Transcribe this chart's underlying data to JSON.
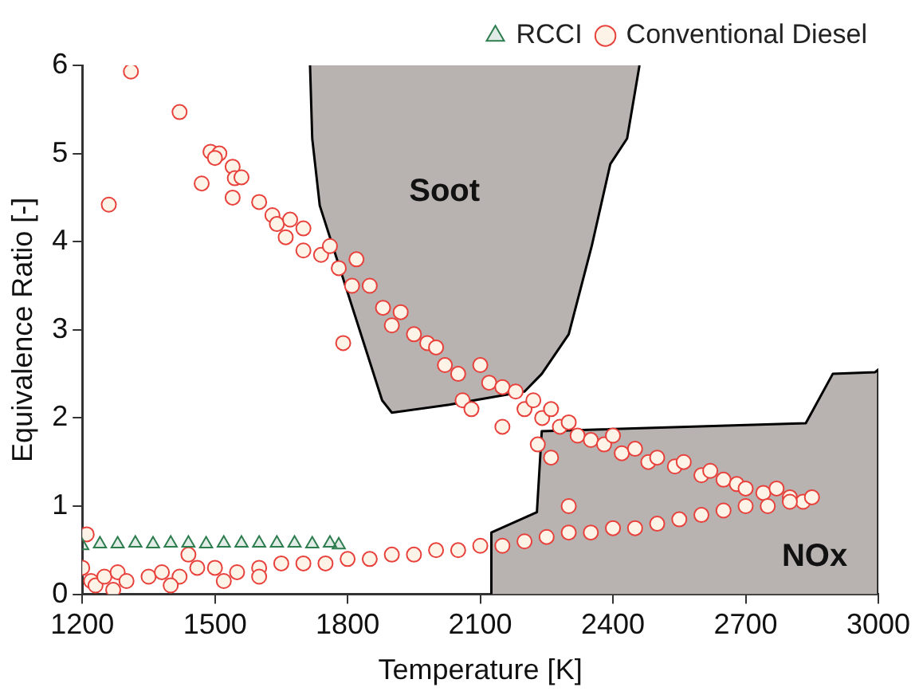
{
  "chart_data": {
    "type": "scatter",
    "xlabel": "Temperature [K]",
    "ylabel": "Equivalence Ratio [-]",
    "xlim": [
      1200,
      3000
    ],
    "xticks": [
      1200,
      1500,
      1800,
      2100,
      2400,
      2700,
      3000
    ],
    "ylim": [
      0,
      6
    ],
    "yticks": [
      0,
      1,
      2,
      3,
      4,
      5,
      6
    ],
    "grid": false,
    "legend": "top right",
    "annotations": [
      "Soot",
      "NOx"
    ],
    "series": [
      {
        "type": "area",
        "color": "#b8b3b1",
        "x": [
          1715,
          1720,
          1737,
          1878,
          1900,
          2030,
          2200,
          2239,
          2300,
          2352,
          2394,
          2432,
          2460
        ],
        "values": [
          6,
          5.17,
          4.41,
          2.2,
          2.06,
          2.15,
          2.3,
          2.5,
          2.95,
          3.95,
          4.88,
          5.17,
          6
        ]
      },
      {
        "type": "area",
        "color": "#b8b3b1",
        "x": [
          2125,
          2125,
          2228,
          2239,
          2836,
          2897,
          2993,
          3000,
          3000
        ],
        "values": [
          0,
          0.7,
          0.93,
          1.85,
          1.94,
          2.5,
          2.52,
          2.55,
          0
        ]
      },
      {
        "name": "RCCI",
        "marker": "triangle",
        "color": "#2e7d4f",
        "x": [
          1200,
          1240,
          1280,
          1320,
          1360,
          1400,
          1440,
          1480,
          1520,
          1560,
          1600,
          1640,
          1680,
          1720,
          1760,
          1780
        ],
        "values": [
          0.55,
          0.57,
          0.57,
          0.58,
          0.57,
          0.58,
          0.58,
          0.57,
          0.58,
          0.58,
          0.58,
          0.58,
          0.58,
          0.57,
          0.58,
          0.56
        ]
      },
      {
        "name": "Conventional Diesel",
        "marker": "circle",
        "color": "#e8413c",
        "x": [
          1260,
          1310,
          1420,
          1490,
          1510,
          1500,
          1470,
          1540,
          1545,
          1560,
          1540,
          1600,
          1630,
          1640,
          1670,
          1660,
          1700,
          1700,
          1740,
          1760,
          1780,
          1820,
          1810,
          1790,
          1850,
          1880,
          1900,
          1920,
          1950,
          1980,
          2000,
          2020,
          2050,
          2060,
          2080,
          2100,
          2120,
          2150,
          2180,
          2200,
          2220,
          2240,
          2260,
          2280,
          2300,
          2320,
          2350,
          2380,
          2400,
          2420,
          2450,
          2480,
          2500,
          2540,
          2560,
          2600,
          2620,
          2650,
          2680,
          2700,
          2740,
          2770,
          2800,
          2830,
          2850,
          2150,
          2230,
          2260,
          1210,
          1200,
          1220,
          1230,
          1250,
          1280,
          1300,
          1350,
          1380,
          1420,
          1440,
          1460,
          1500,
          1550,
          1600,
          1650,
          1700,
          1750,
          1800,
          1850,
          1900,
          1950,
          2000,
          2050,
          2100,
          2150,
          2200,
          2250,
          2300,
          2350,
          2400,
          2450,
          2500,
          2550,
          2600,
          2650,
          2700,
          2750,
          2800,
          2300,
          1270,
          1400,
          1520,
          1600
        ],
        "values": [
          4.42,
          5.93,
          5.47,
          5.02,
          5.0,
          4.95,
          4.66,
          4.85,
          4.72,
          4.73,
          4.5,
          4.45,
          4.3,
          4.2,
          4.25,
          4.05,
          4.15,
          3.9,
          3.85,
          3.95,
          3.7,
          3.8,
          3.5,
          2.85,
          3.5,
          3.25,
          3.05,
          3.2,
          2.95,
          2.85,
          2.8,
          2.6,
          2.5,
          2.2,
          2.1,
          2.6,
          2.4,
          2.35,
          2.3,
          2.1,
          2.2,
          2.0,
          2.1,
          1.9,
          1.95,
          1.8,
          1.75,
          1.7,
          1.8,
          1.6,
          1.65,
          1.5,
          1.55,
          1.45,
          1.5,
          1.35,
          1.4,
          1.3,
          1.25,
          1.2,
          1.15,
          1.2,
          1.1,
          1.05,
          1.1,
          1.9,
          1.7,
          1.55,
          0.68,
          0.3,
          0.15,
          0.1,
          0.2,
          0.25,
          0.15,
          0.2,
          0.25,
          0.2,
          0.45,
          0.3,
          0.3,
          0.25,
          0.3,
          0.35,
          0.35,
          0.35,
          0.4,
          0.4,
          0.45,
          0.45,
          0.5,
          0.5,
          0.55,
          0.55,
          0.6,
          0.65,
          0.7,
          0.7,
          0.75,
          0.75,
          0.8,
          0.85,
          0.9,
          0.95,
          1.0,
          1.0,
          1.05,
          1.0,
          0.05,
          0.1,
          0.15,
          0.2
        ]
      }
    ]
  }
}
